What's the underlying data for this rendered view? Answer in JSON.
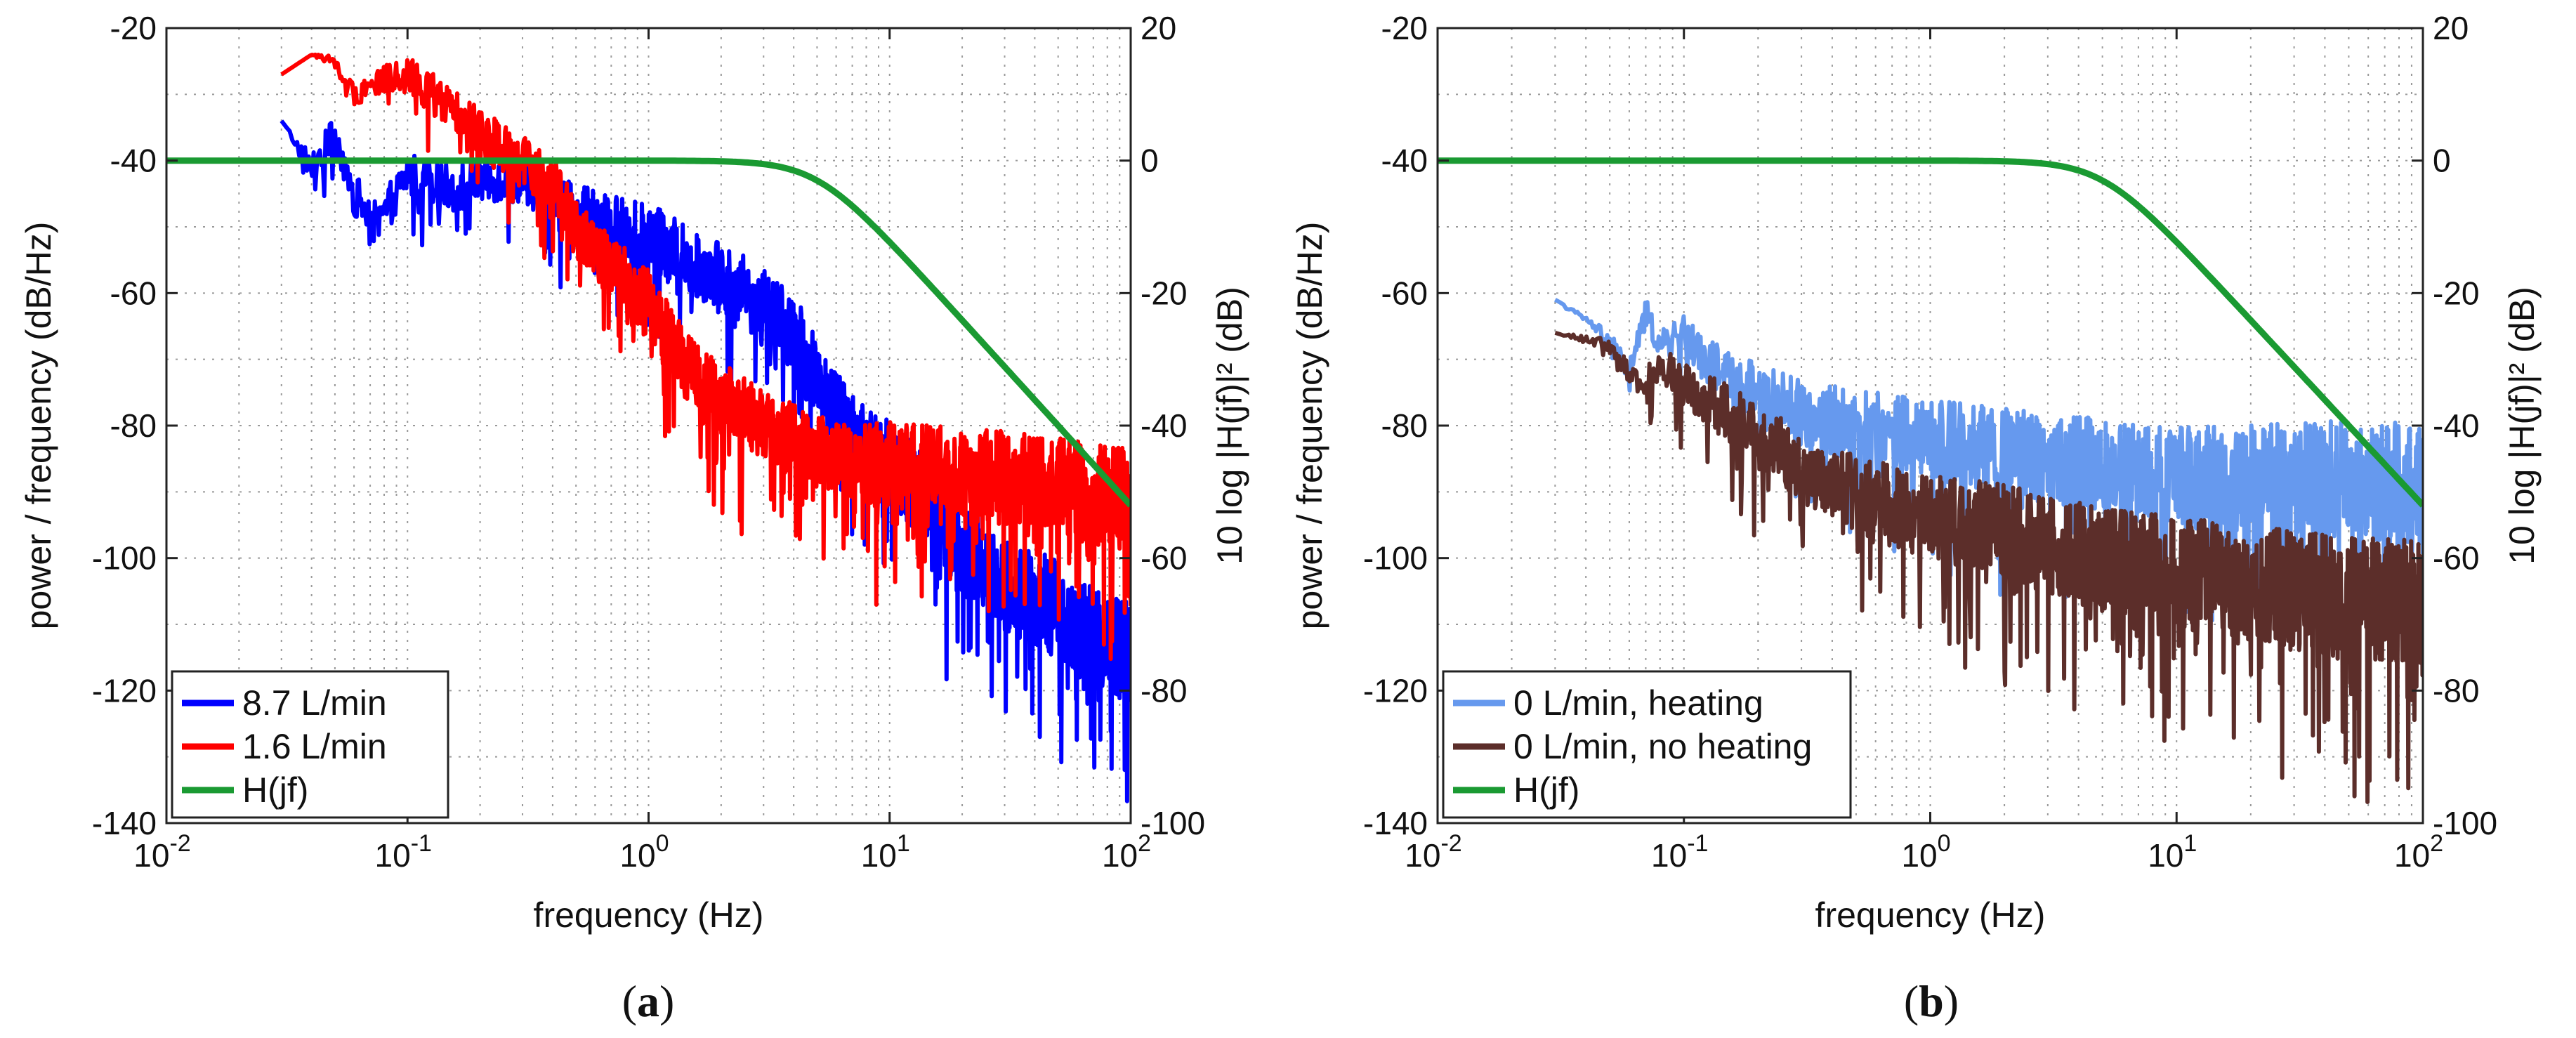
{
  "chart_data": [
    {
      "type": "line",
      "panel_label": "(a)",
      "xlabel": "frequency (Hz)",
      "ylabel": "power / frequency (dB/Hz)",
      "ylabel_right": "10 log |H(jf)|² (dB)",
      "xscale": "log",
      "xlim": [
        0.01,
        100
      ],
      "ylim": [
        -140,
        -20
      ],
      "ylim_right": [
        -100,
        20
      ],
      "x_ticks": [
        {
          "v": 0.01,
          "base": "10",
          "exp": "-2"
        },
        {
          "v": 0.1,
          "base": "10",
          "exp": "-1"
        },
        {
          "v": 1,
          "base": "10",
          "exp": "0"
        },
        {
          "v": 10,
          "base": "10",
          "exp": "1"
        },
        {
          "v": 100,
          "base": "10",
          "exp": "2"
        }
      ],
      "y_ticks": [
        "-140",
        "-120",
        "-100",
        "-80",
        "-60",
        "-40",
        "-20"
      ],
      "y_ticks_right": [
        "-100",
        "-80",
        "-60",
        "-40",
        "-20",
        "0",
        "20"
      ],
      "grid": true,
      "legend_position": "bottom-left",
      "series": [
        {
          "name": "8.7 L/min",
          "color": "#0000ff",
          "axis": "left",
          "x": [
            0.03,
            0.04,
            0.05,
            0.06,
            0.075,
            0.1,
            0.15,
            0.2,
            0.3,
            0.4,
            0.5,
            0.7,
            1,
            1.5,
            2,
            3,
            4,
            5,
            7,
            10,
            15,
            20,
            30,
            50,
            70,
            100
          ],
          "y": [
            -34,
            -41,
            -36,
            -45,
            -50,
            -42,
            -44,
            -43,
            -43,
            -46,
            -48,
            -50,
            -52,
            -55,
            -57,
            -62,
            -66,
            -72,
            -82,
            -85,
            -92,
            -98,
            -104,
            -108,
            -112,
            -114
          ],
          "spread": [
            0,
            4,
            5,
            6,
            6,
            6,
            6,
            6,
            6,
            7,
            8,
            9,
            10,
            10,
            10,
            10,
            10,
            11,
            12,
            12,
            13,
            13,
            13,
            14,
            14,
            14
          ]
        },
        {
          "name": "1.6 L/min",
          "color": "#ff0000",
          "axis": "left",
          "x": [
            0.03,
            0.04,
            0.05,
            0.06,
            0.075,
            0.1,
            0.15,
            0.2,
            0.3,
            0.4,
            0.5,
            0.7,
            1,
            1.5,
            2,
            3,
            5,
            7,
            10,
            20,
            30,
            50,
            70,
            100
          ],
          "y": [
            -27,
            -24,
            -25,
            -30,
            -28,
            -27,
            -32,
            -36,
            -40,
            -44,
            -50,
            -56,
            -62,
            -72,
            -76,
            -80,
            -84,
            -86,
            -86,
            -87,
            -88,
            -89,
            -90,
            -91
          ],
          "spread": [
            0,
            0,
            2,
            3,
            4,
            5,
            6,
            7,
            7,
            8,
            8,
            9,
            10,
            10,
            10,
            10,
            10,
            11,
            12,
            12,
            13,
            13,
            14,
            14
          ]
        },
        {
          "name": "H(jf)",
          "color": "#1a9a32",
          "axis": "right",
          "cutoff_hz": 5,
          "order": 2
        }
      ]
    },
    {
      "type": "line",
      "panel_label": "(b)",
      "xlabel": "frequency (Hz)",
      "ylabel": "power / frequency (dB/Hz)",
      "ylabel_right": "10 log |H(jf)|² (dB)",
      "xscale": "log",
      "xlim": [
        0.01,
        100
      ],
      "ylim": [
        -140,
        -20
      ],
      "ylim_right": [
        -100,
        20
      ],
      "x_ticks": [
        {
          "v": 0.01,
          "base": "10",
          "exp": "-2"
        },
        {
          "v": 0.1,
          "base": "10",
          "exp": "-1"
        },
        {
          "v": 1,
          "base": "10",
          "exp": "0"
        },
        {
          "v": 10,
          "base": "10",
          "exp": "1"
        },
        {
          "v": 100,
          "base": "10",
          "exp": "2"
        }
      ],
      "y_ticks": [
        "-140",
        "-120",
        "-100",
        "-80",
        "-60",
        "-40",
        "-20"
      ],
      "y_ticks_right": [
        "-100",
        "-80",
        "-60",
        "-40",
        "-20",
        "0",
        "20"
      ],
      "grid": true,
      "legend_position": "bottom-left",
      "series": [
        {
          "name": "0 L/min, heating",
          "color": "#6699ee",
          "axis": "left",
          "x": [
            0.03,
            0.04,
            0.05,
            0.06,
            0.07,
            0.08,
            0.1,
            0.12,
            0.15,
            0.2,
            0.3,
            0.5,
            1,
            2,
            5,
            10,
            20,
            50,
            100
          ],
          "y": [
            -61,
            -64,
            -67,
            -72,
            -63,
            -68,
            -66,
            -70,
            -72,
            -75,
            -78,
            -80,
            -82,
            -84,
            -86,
            -88,
            -88,
            -88,
            -89
          ],
          "spread": [
            0,
            1,
            2,
            3,
            4,
            4,
            5,
            6,
            7,
            8,
            9,
            10,
            11,
            12,
            13,
            14,
            15,
            16,
            17
          ]
        },
        {
          "name": "0 L/min, no heating",
          "color": "#5c2e2a",
          "axis": "left",
          "x": [
            0.03,
            0.04,
            0.05,
            0.06,
            0.07,
            0.08,
            0.1,
            0.12,
            0.15,
            0.2,
            0.3,
            0.5,
            1,
            2,
            5,
            10,
            20,
            50,
            100
          ],
          "y": [
            -66,
            -67,
            -68,
            -72,
            -74,
            -70,
            -74,
            -76,
            -78,
            -82,
            -86,
            -90,
            -94,
            -96,
            -100,
            -102,
            -104,
            -106,
            -106
          ],
          "spread": [
            0,
            1,
            2,
            3,
            4,
            5,
            6,
            7,
            8,
            9,
            10,
            11,
            12,
            13,
            14,
            15,
            16,
            17,
            18
          ]
        },
        {
          "name": "H(jf)",
          "color": "#1a9a32",
          "axis": "right",
          "cutoff_hz": 5,
          "order": 2
        }
      ]
    }
  ]
}
